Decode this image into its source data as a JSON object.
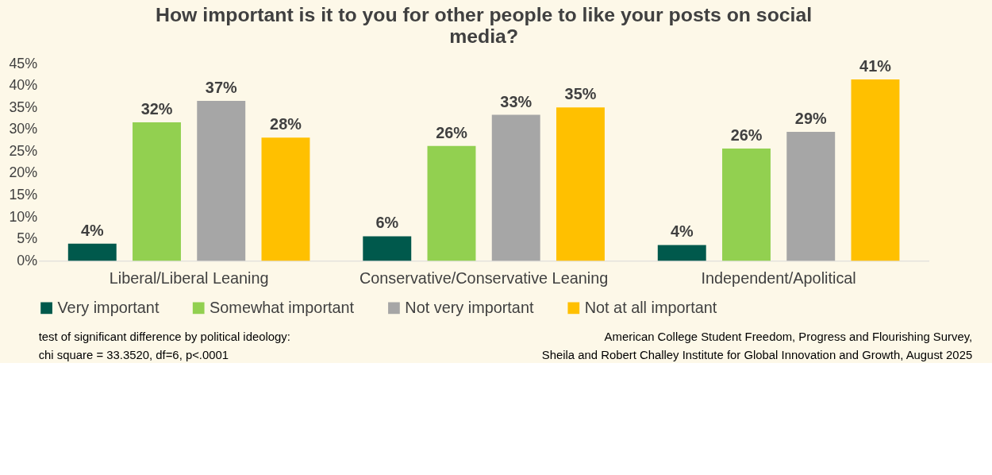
{
  "chart_data": {
    "type": "bar",
    "title": "How important is it to you for other people to like your posts on social media?",
    "categories": [
      "Liberal/Liberal Leaning",
      "Conservative/Conservative Leaning",
      "Independent/Apolitical"
    ],
    "series": [
      {
        "name": "Very important",
        "color": "#00594c",
        "values": [
          3.9,
          5.6,
          3.6
        ],
        "value_labels": [
          "4%",
          "6%",
          "4%"
        ]
      },
      {
        "name": "Somewhat important",
        "color": "#92d050",
        "values": [
          31.6,
          26.2,
          25.6
        ],
        "value_labels": [
          "32%",
          "26%",
          "26%"
        ]
      },
      {
        "name": "Not very important",
        "color": "#a6a6a6",
        "values": [
          36.5,
          33.3,
          29.4
        ],
        "value_labels": [
          "37%",
          "33%",
          "29%"
        ]
      },
      {
        "name": "Not at all important",
        "color": "#ffc000",
        "values": [
          28.1,
          35.0,
          41.4
        ],
        "value_labels": [
          "28%",
          "35%",
          "41%"
        ]
      }
    ],
    "ylim": [
      0,
      45
    ],
    "yticks": [
      {
        "value": 0,
        "label": "0%"
      },
      {
        "value": 5,
        "label": "5%"
      },
      {
        "value": 10,
        "label": "10%"
      },
      {
        "value": 15,
        "label": "15%"
      },
      {
        "value": 20,
        "label": "20%"
      },
      {
        "value": 25,
        "label": "25%"
      },
      {
        "value": 30,
        "label": "30%"
      },
      {
        "value": 35,
        "label": "35%"
      },
      {
        "value": 40,
        "label": "40%"
      },
      {
        "value": 45,
        "label": "45%"
      }
    ],
    "legend": "bottom",
    "grid": false,
    "annotations": [
      "test of significant difference by political ideology:\nchi square = 33.3520, df=6, p<.0001",
      "American College Student Freedom, Progress and Flourishing Survey,\nSheila and Robert Challey Institute for Global Innovation and Growth, August 2025"
    ]
  }
}
